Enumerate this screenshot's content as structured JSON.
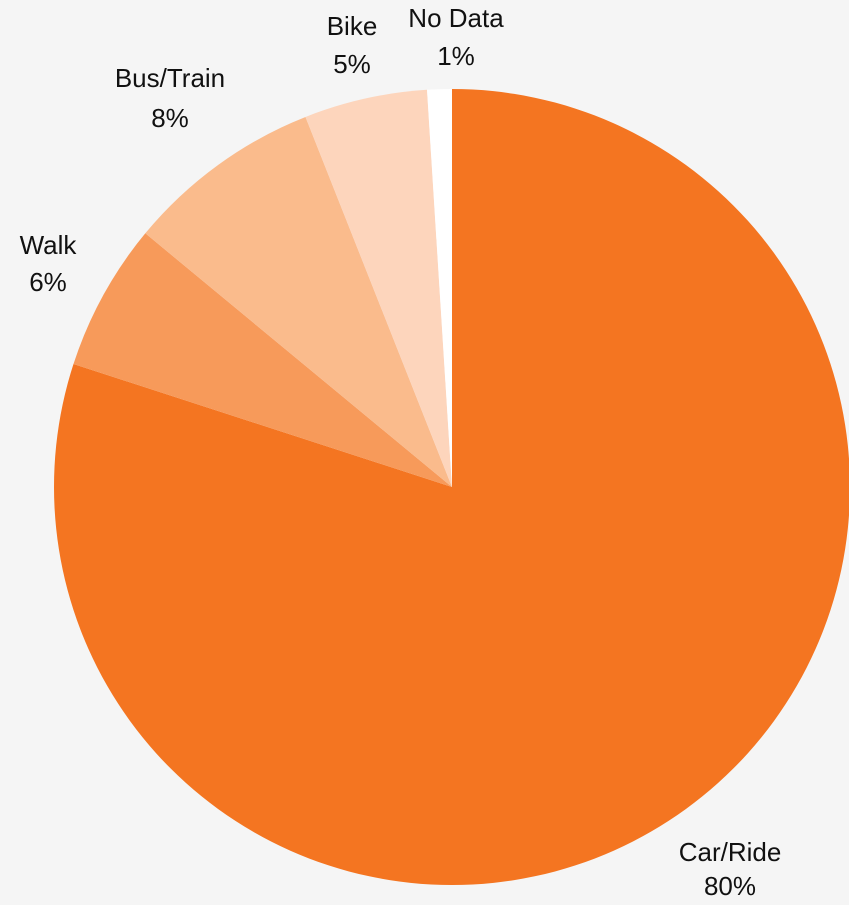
{
  "chart_data": {
    "type": "pie",
    "categories": [
      "Car/Ride",
      "Walk",
      "Bus/Train",
      "Bike",
      "No Data"
    ],
    "values": [
      80,
      6,
      8,
      5,
      1
    ],
    "value_labels": [
      "80%",
      "6%",
      "8%",
      "5%",
      "1%"
    ],
    "colors": [
      "#F47521",
      "#F79A5A",
      "#FABB8C",
      "#FDD5BC",
      "#FFFFFF"
    ]
  }
}
